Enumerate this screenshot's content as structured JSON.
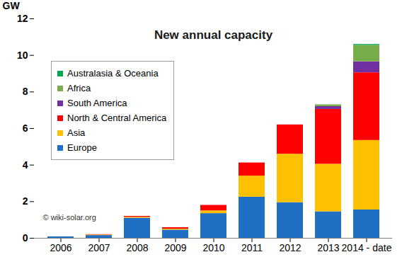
{
  "chart_data": {
    "type": "bar",
    "title": "New annual capacity",
    "ylabel": "GW",
    "annotations": [
      "© wiki-solar.org"
    ],
    "categories": [
      "2006",
      "2007",
      "2008",
      "2009",
      "2010",
      "2011",
      "2012",
      "2013",
      "2014 - date"
    ],
    "series": [
      {
        "name": "Europe",
        "color": "#1F6FC5",
        "values": [
          0.08,
          0.15,
          1.1,
          0.45,
          1.35,
          2.25,
          1.95,
          1.45,
          1.55
        ]
      },
      {
        "name": "Asia",
        "color": "#FFC000",
        "values": [
          0,
          0.03,
          0.05,
          0.05,
          0.15,
          1.15,
          2.65,
          2.6,
          3.8
        ]
      },
      {
        "name": "North & Central America",
        "color": "#FF0000",
        "values": [
          0,
          0.02,
          0.05,
          0.08,
          0.3,
          0.72,
          1.6,
          3.0,
          3.7
        ]
      },
      {
        "name": "South America",
        "color": "#7030A0",
        "values": [
          0,
          0,
          0,
          0,
          0,
          0,
          0,
          0.15,
          0.6
        ]
      },
      {
        "name": "Africa",
        "color": "#77AC4B",
        "values": [
          0,
          0,
          0,
          0,
          0,
          0,
          0,
          0.1,
          0.9
        ]
      },
      {
        "name": "Australasia & Oceania",
        "color": "#00A651",
        "values": [
          0,
          0,
          0,
          0,
          0,
          0,
          0,
          0,
          0.05
        ]
      }
    ],
    "stacked": true,
    "ylim": [
      0,
      12
    ],
    "yticks": [
      0,
      2,
      4,
      6,
      8,
      10,
      12
    ],
    "grid": false,
    "legend": "top-left"
  }
}
